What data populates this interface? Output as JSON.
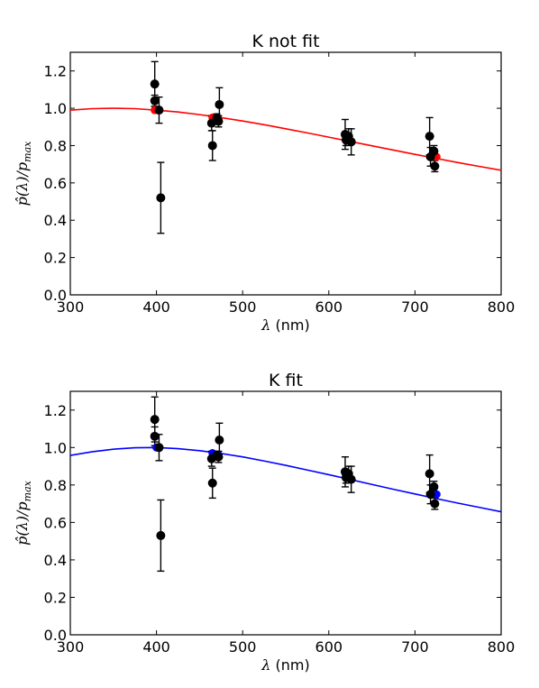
{
  "chart_data": [
    {
      "type": "scatter",
      "title": "K not fit",
      "xlabel_symbol": "λ",
      "xlabel_unit": "(nm)",
      "ylabel_parts": [
        "p̂(λ)/p",
        "max"
      ],
      "xlim": [
        300,
        800
      ],
      "ylim": [
        0.0,
        1.3
      ],
      "xticks": [
        "300",
        "400",
        "500",
        "600",
        "700",
        "800"
      ],
      "yticks": [
        "0.0",
        "0.2",
        "0.4",
        "0.6",
        "0.8",
        "1.0",
        "1.2"
      ],
      "curve_color": "#ff0000",
      "model_marker_color": "#ff0000",
      "curve": {
        "x": [
          300,
          325,
          350,
          375,
          400,
          425,
          450,
          475,
          500,
          525,
          550,
          575,
          600,
          625,
          650,
          675,
          700,
          725,
          750,
          775,
          800
        ],
        "y": [
          0.99,
          0.998,
          1.0,
          0.998,
          0.99,
          0.98,
          0.966,
          0.95,
          0.932,
          0.912,
          0.89,
          0.868,
          0.845,
          0.822,
          0.799,
          0.776,
          0.753,
          0.731,
          0.709,
          0.688,
          0.668
        ]
      },
      "observed": [
        {
          "x": 398,
          "y": 1.13,
          "err": 0.12
        },
        {
          "x": 398,
          "y": 1.04,
          "err": 0.03
        },
        {
          "x": 403,
          "y": 0.99,
          "err": 0.07
        },
        {
          "x": 405,
          "y": 0.52,
          "err": 0.19
        },
        {
          "x": 464,
          "y": 0.92,
          "err": 0.04
        },
        {
          "x": 465,
          "y": 0.8,
          "err": 0.08
        },
        {
          "x": 470,
          "y": 0.95,
          "err": 0.02
        },
        {
          "x": 472,
          "y": 0.93,
          "err": 0.03
        },
        {
          "x": 473,
          "y": 1.02,
          "err": 0.09
        },
        {
          "x": 619,
          "y": 0.86,
          "err": 0.08
        },
        {
          "x": 620,
          "y": 0.83,
          "err": 0.03
        },
        {
          "x": 623,
          "y": 0.85,
          "err": 0.04
        },
        {
          "x": 626,
          "y": 0.82,
          "err": 0.07
        },
        {
          "x": 717,
          "y": 0.85,
          "err": 0.1
        },
        {
          "x": 718,
          "y": 0.74,
          "err": 0.05
        },
        {
          "x": 722,
          "y": 0.77,
          "err": 0.03
        },
        {
          "x": 723,
          "y": 0.69,
          "err": 0.03
        }
      ],
      "model_points": [
        {
          "x": 398,
          "y": 0.99
        },
        {
          "x": 465,
          "y": 0.95
        },
        {
          "x": 472,
          "y": 0.94
        },
        {
          "x": 623,
          "y": 0.84
        },
        {
          "x": 725,
          "y": 0.74
        }
      ]
    },
    {
      "type": "scatter",
      "title": "K fit",
      "xlabel_symbol": "λ",
      "xlabel_unit": "(nm)",
      "ylabel_parts": [
        "p̂(λ)/p",
        "max"
      ],
      "xlim": [
        300,
        800
      ],
      "ylim": [
        0.0,
        1.3
      ],
      "xticks": [
        "300",
        "400",
        "500",
        "600",
        "700",
        "800"
      ],
      "yticks": [
        "0.0",
        "0.2",
        "0.4",
        "0.6",
        "0.8",
        "1.0",
        "1.2"
      ],
      "curve_color": "#0000ff",
      "model_marker_color": "#0000ff",
      "curve": {
        "x": [
          300,
          325,
          350,
          375,
          400,
          425,
          450,
          475,
          500,
          525,
          550,
          575,
          600,
          625,
          650,
          675,
          700,
          725,
          750,
          775,
          800
        ],
        "y": [
          0.958,
          0.977,
          0.991,
          0.999,
          1.0,
          0.994,
          0.983,
          0.968,
          0.95,
          0.928,
          0.905,
          0.88,
          0.855,
          0.829,
          0.803,
          0.777,
          0.752,
          0.727,
          0.703,
          0.68,
          0.657
        ]
      },
      "observed": [
        {
          "x": 398,
          "y": 1.15,
          "err": 0.12
        },
        {
          "x": 398,
          "y": 1.06,
          "err": 0.05
        },
        {
          "x": 403,
          "y": 1.0,
          "err": 0.07
        },
        {
          "x": 405,
          "y": 0.53,
          "err": 0.19
        },
        {
          "x": 464,
          "y": 0.94,
          "err": 0.04
        },
        {
          "x": 465,
          "y": 0.81,
          "err": 0.08
        },
        {
          "x": 470,
          "y": 0.96,
          "err": 0.02
        },
        {
          "x": 472,
          "y": 0.95,
          "err": 0.03
        },
        {
          "x": 473,
          "y": 1.04,
          "err": 0.09
        },
        {
          "x": 619,
          "y": 0.87,
          "err": 0.08
        },
        {
          "x": 620,
          "y": 0.84,
          "err": 0.03
        },
        {
          "x": 623,
          "y": 0.86,
          "err": 0.04
        },
        {
          "x": 626,
          "y": 0.83,
          "err": 0.07
        },
        {
          "x": 717,
          "y": 0.86,
          "err": 0.1
        },
        {
          "x": 718,
          "y": 0.75,
          "err": 0.05
        },
        {
          "x": 722,
          "y": 0.79,
          "err": 0.03
        },
        {
          "x": 723,
          "y": 0.7,
          "err": 0.03
        }
      ],
      "model_points": [
        {
          "x": 400,
          "y": 1.0
        },
        {
          "x": 465,
          "y": 0.97
        },
        {
          "x": 472,
          "y": 0.96
        },
        {
          "x": 623,
          "y": 0.84
        },
        {
          "x": 725,
          "y": 0.75
        }
      ]
    }
  ]
}
